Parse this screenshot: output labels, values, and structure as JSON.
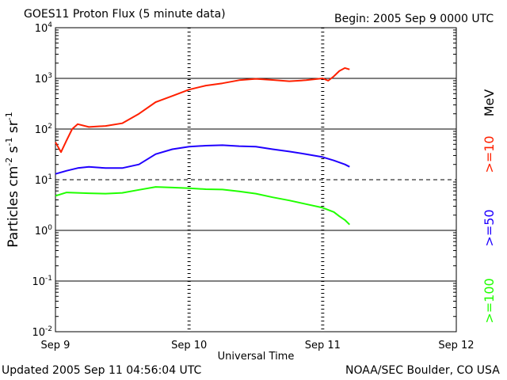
{
  "header": {
    "title": "GOES11 Proton Flux (5 minute data)",
    "begin": "Begin: 2005 Sep 9 0000 UTC"
  },
  "footer": {
    "updated": "Updated 2005 Sep 11 04:56:04 UTC",
    "credit": "NOAA/SEC Boulder, CO USA"
  },
  "colors": {
    "ge10": "#ff2000",
    "ge50": "#2000ff",
    "ge100": "#20ff00"
  },
  "chart_data": {
    "type": "line",
    "title": "GOES11 Proton Flux (5 minute data)",
    "xlabel": "Universal Time",
    "ylabel": "Particles cm^-2 s^-1 sr^-1",
    "y_scale": "log",
    "ylim": [
      0.01,
      10000
    ],
    "y_ticks": [
      {
        "base": "10",
        "exp": "4"
      },
      {
        "base": "10",
        "exp": "3"
      },
      {
        "base": "10",
        "exp": "2"
      },
      {
        "base": "10",
        "exp": "1"
      },
      {
        "base": "10",
        "exp": "0"
      },
      {
        "base": "10",
        "exp": "-1"
      },
      {
        "base": "10",
        "exp": "-2"
      }
    ],
    "x_ticks": [
      "Sep 9",
      "Sep 10",
      "Sep 11",
      "Sep 12"
    ],
    "xlim": [
      "2005-09-09 00:00",
      "2005-09-12 00:00"
    ],
    "units_label": "MeV",
    "series": [
      {
        "name": ">=10",
        "color": "#ff2000",
        "x": [
          "2005-09-09 00:00",
          "2005-09-09 01:00",
          "2005-09-09 02:00",
          "2005-09-09 03:00",
          "2005-09-09 04:00",
          "2005-09-09 06:00",
          "2005-09-09 09:00",
          "2005-09-09 12:00",
          "2005-09-09 15:00",
          "2005-09-09 18:00",
          "2005-09-09 21:00",
          "2005-09-10 00:00",
          "2005-09-10 03:00",
          "2005-09-10 06:00",
          "2005-09-10 09:00",
          "2005-09-10 12:00",
          "2005-09-10 15:00",
          "2005-09-10 18:00",
          "2005-09-10 21:00",
          "2005-09-11 00:00",
          "2005-09-11 01:00",
          "2005-09-11 02:00",
          "2005-09-11 03:00",
          "2005-09-11 04:00",
          "2005-09-11 04:50"
        ],
        "y": [
          55,
          35,
          60,
          100,
          125,
          110,
          115,
          130,
          200,
          340,
          450,
          600,
          720,
          800,
          920,
          980,
          930,
          880,
          920,
          1000,
          900,
          1100,
          1400,
          1600,
          1500
        ]
      },
      {
        "name": ">=50",
        "color": "#2000ff",
        "x": [
          "2005-09-09 00:00",
          "2005-09-09 02:00",
          "2005-09-09 04:00",
          "2005-09-09 06:00",
          "2005-09-09 09:00",
          "2005-09-09 12:00",
          "2005-09-09 15:00",
          "2005-09-09 18:00",
          "2005-09-09 21:00",
          "2005-09-10 00:00",
          "2005-09-10 03:00",
          "2005-09-10 06:00",
          "2005-09-10 09:00",
          "2005-09-10 12:00",
          "2005-09-10 15:00",
          "2005-09-10 18:00",
          "2005-09-10 21:00",
          "2005-09-11 00:00",
          "2005-09-11 02:00",
          "2005-09-11 04:00",
          "2005-09-11 04:50"
        ],
        "y": [
          13,
          15,
          17,
          18,
          17,
          17,
          20,
          32,
          40,
          45,
          47,
          48,
          46,
          45,
          40,
          36,
          32,
          28,
          24,
          20,
          18
        ]
      },
      {
        "name": ">=100",
        "color": "#20ff00",
        "x": [
          "2005-09-09 00:00",
          "2005-09-09 02:00",
          "2005-09-09 04:00",
          "2005-09-09 06:00",
          "2005-09-09 09:00",
          "2005-09-09 12:00",
          "2005-09-09 15:00",
          "2005-09-09 18:00",
          "2005-09-09 21:00",
          "2005-09-10 00:00",
          "2005-09-10 03:00",
          "2005-09-10 06:00",
          "2005-09-10 09:00",
          "2005-09-10 12:00",
          "2005-09-10 15:00",
          "2005-09-10 18:00",
          "2005-09-10 21:00",
          "2005-09-11 00:00",
          "2005-09-11 02:00",
          "2005-09-11 03:00",
          "2005-09-11 04:00",
          "2005-09-11 04:50"
        ],
        "y": [
          4.8,
          5.6,
          5.5,
          5.4,
          5.3,
          5.5,
          6.3,
          7.2,
          7.0,
          6.8,
          6.5,
          6.4,
          5.9,
          5.3,
          4.5,
          3.9,
          3.3,
          2.8,
          2.3,
          1.9,
          1.6,
          1.3
        ]
      }
    ]
  }
}
